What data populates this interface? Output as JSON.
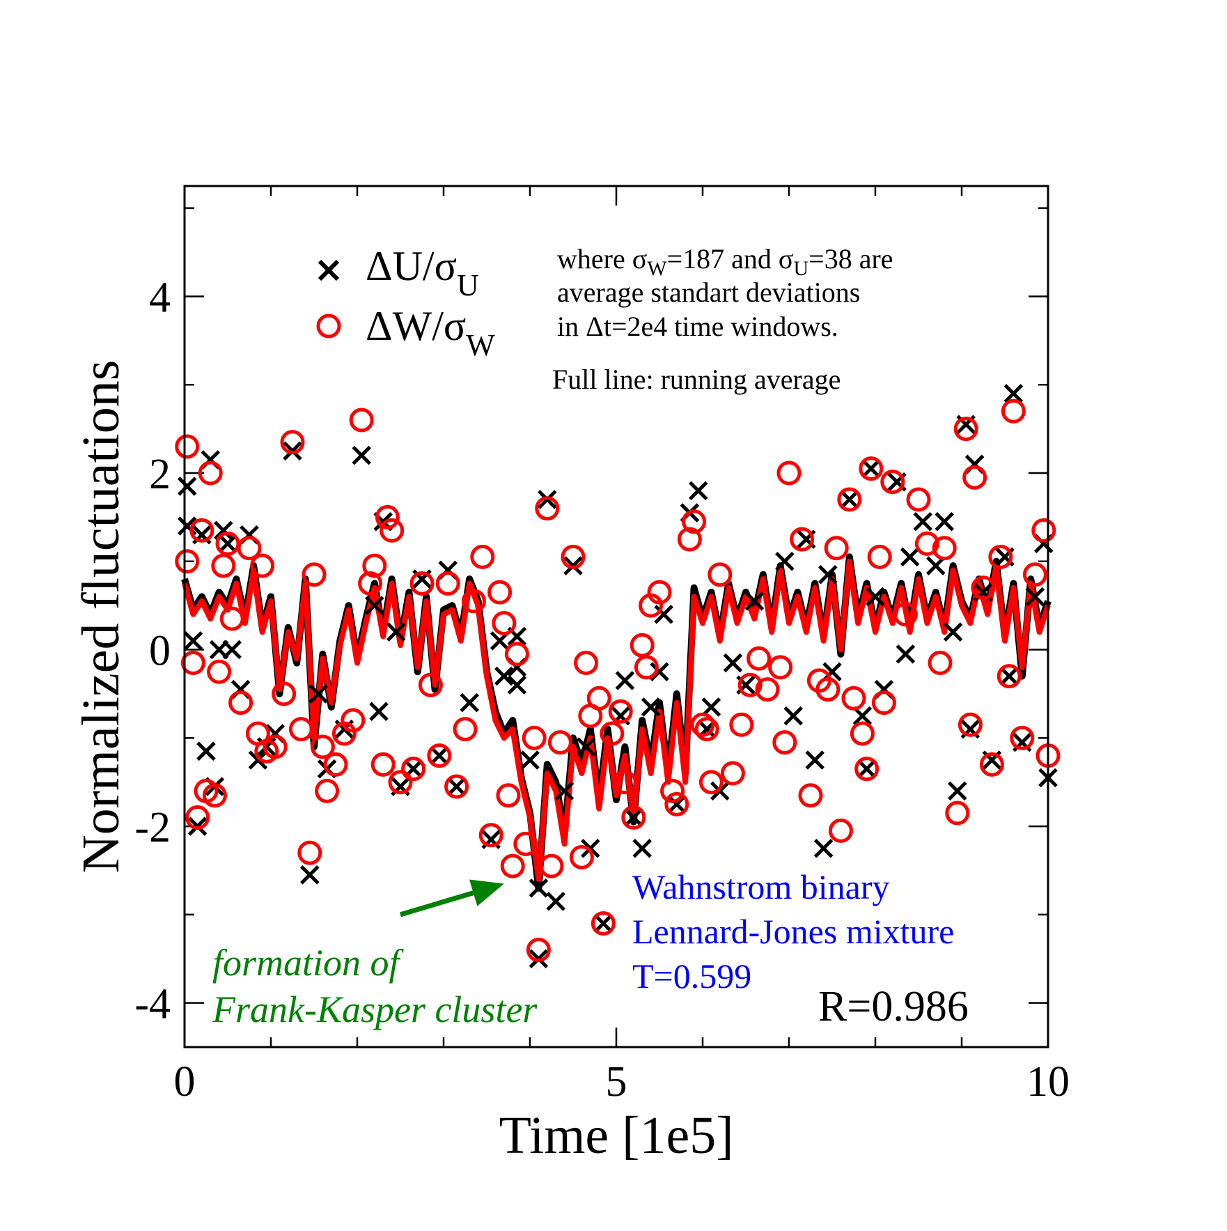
{
  "chart_data": {
    "type": "scatter",
    "xlabel": "Time [1e5]",
    "ylabel": "Normalized fluctuations",
    "xlim": [
      0,
      10
    ],
    "ylim": [
      -4.5,
      5.25
    ],
    "x_ticks": [
      "0",
      "5",
      "10"
    ],
    "y_ticks": [
      "-4",
      "-2",
      "0",
      "2",
      "4"
    ],
    "legend_placement": "top-left",
    "legend": [
      {
        "label": "ΔU/σ",
        "sub": "U",
        "marker": "x",
        "color": "#000000"
      },
      {
        "label": "ΔW/σ",
        "sub": "W",
        "marker": "circle",
        "color": "#ff0000"
      }
    ],
    "notes": {
      "line1_pre": "where σ",
      "line1_sub1": "W",
      "line1_mid": "=187 and σ",
      "line1_sub2": "U",
      "line1_post": "=38 are",
      "line2": "average standart deviations",
      "line3": "in Δt=2e4 time windows.",
      "line4": "Full line: running average"
    },
    "system_label": [
      "Wahnstrom binary",
      "Lennard-Jones mixture",
      "T=0.599"
    ],
    "system_color": "#0000ff",
    "correlation": "R=0.986",
    "annotation": {
      "lines": [
        "formation of",
        "Frank-Kasper cluster"
      ],
      "color": "#008000",
      "arrow_from": [
        2.5,
        -3.0
      ],
      "arrow_to": [
        3.7,
        -2.65
      ]
    },
    "series_colors": {
      "U": "#000000",
      "W": "#ff0000"
    },
    "series": [
      {
        "name": "ΔU/σU",
        "marker": "x",
        "points": [
          [
            0.03,
            1.85
          ],
          [
            0.03,
            1.4
          ],
          [
            0.1,
            0.1
          ],
          [
            0.15,
            -2.0
          ],
          [
            0.2,
            1.3
          ],
          [
            0.25,
            -1.15
          ],
          [
            0.3,
            2.15
          ],
          [
            0.35,
            -1.55
          ],
          [
            0.4,
            0.0
          ],
          [
            0.45,
            1.35
          ],
          [
            0.5,
            1.2
          ],
          [
            0.55,
            0.0
          ],
          [
            0.65,
            -0.45
          ],
          [
            0.75,
            1.3
          ],
          [
            0.85,
            -1.25
          ],
          [
            0.95,
            -1.1
          ],
          [
            1.05,
            -0.95
          ],
          [
            1.25,
            2.25
          ],
          [
            1.45,
            -2.55
          ],
          [
            1.55,
            -0.5
          ],
          [
            1.65,
            -1.35
          ],
          [
            1.85,
            -0.9
          ],
          [
            2.05,
            2.2
          ],
          [
            2.2,
            0.5
          ],
          [
            2.25,
            -0.7
          ],
          [
            2.3,
            1.45
          ],
          [
            2.45,
            0.2
          ],
          [
            2.5,
            -1.55
          ],
          [
            2.65,
            -1.35
          ],
          [
            2.75,
            0.8
          ],
          [
            2.95,
            -1.2
          ],
          [
            3.05,
            0.9
          ],
          [
            3.15,
            -1.55
          ],
          [
            3.3,
            -0.6
          ],
          [
            3.55,
            -2.15
          ],
          [
            3.65,
            0.1
          ],
          [
            3.7,
            -0.3
          ],
          [
            3.85,
            0.15
          ],
          [
            3.85,
            -0.4
          ],
          [
            3.85,
            -0.2
          ],
          [
            4.0,
            -1.25
          ],
          [
            4.1,
            -2.7
          ],
          [
            4.1,
            -3.5
          ],
          [
            4.2,
            1.7
          ],
          [
            4.3,
            -2.85
          ],
          [
            4.4,
            -1.6
          ],
          [
            4.5,
            0.95
          ],
          [
            4.65,
            -1.1
          ],
          [
            4.7,
            -2.25
          ],
          [
            4.85,
            -3.1
          ],
          [
            5.05,
            -0.75
          ],
          [
            5.1,
            -0.35
          ],
          [
            5.2,
            -1.9
          ],
          [
            5.3,
            -2.25
          ],
          [
            5.4,
            -0.65
          ],
          [
            5.5,
            -0.25
          ],
          [
            5.55,
            0.4
          ],
          [
            5.7,
            -1.75
          ],
          [
            5.85,
            1.55
          ],
          [
            5.95,
            1.8
          ],
          [
            6.05,
            -0.9
          ],
          [
            6.1,
            -0.65
          ],
          [
            6.2,
            -1.6
          ],
          [
            6.35,
            -0.15
          ],
          [
            6.5,
            -0.4
          ],
          [
            6.6,
            0.55
          ],
          [
            6.95,
            1.0
          ],
          [
            7.05,
            -0.75
          ],
          [
            7.2,
            1.25
          ],
          [
            7.3,
            -1.25
          ],
          [
            7.4,
            -2.25
          ],
          [
            7.45,
            0.85
          ],
          [
            7.5,
            -0.25
          ],
          [
            7.7,
            1.7
          ],
          [
            7.85,
            -0.75
          ],
          [
            7.9,
            -1.35
          ],
          [
            7.95,
            2.05
          ],
          [
            8.0,
            0.6
          ],
          [
            8.1,
            -0.45
          ],
          [
            8.25,
            1.9
          ],
          [
            8.35,
            -0.05
          ],
          [
            8.4,
            1.05
          ],
          [
            8.55,
            1.45
          ],
          [
            8.7,
            0.95
          ],
          [
            8.8,
            1.45
          ],
          [
            8.9,
            0.2
          ],
          [
            8.95,
            -1.6
          ],
          [
            9.05,
            2.55
          ],
          [
            9.1,
            -0.9
          ],
          [
            9.15,
            2.1
          ],
          [
            9.25,
            0.65
          ],
          [
            9.35,
            -1.25
          ],
          [
            9.5,
            1.05
          ],
          [
            9.55,
            -0.3
          ],
          [
            9.6,
            2.9
          ],
          [
            9.7,
            -1.05
          ],
          [
            9.85,
            0.6
          ],
          [
            9.95,
            1.2
          ],
          [
            10.0,
            -1.45
          ]
        ]
      },
      {
        "name": "ΔW/σW",
        "marker": "circle",
        "points": [
          [
            0.03,
            2.3
          ],
          [
            0.03,
            1.0
          ],
          [
            0.1,
            -0.15
          ],
          [
            0.15,
            -1.9
          ],
          [
            0.2,
            1.35
          ],
          [
            0.25,
            -1.6
          ],
          [
            0.3,
            2.0
          ],
          [
            0.35,
            -1.65
          ],
          [
            0.4,
            -0.25
          ],
          [
            0.45,
            0.95
          ],
          [
            0.5,
            1.2
          ],
          [
            0.55,
            0.35
          ],
          [
            0.65,
            -0.6
          ],
          [
            0.75,
            1.15
          ],
          [
            0.85,
            -0.95
          ],
          [
            0.9,
            0.95
          ],
          [
            0.95,
            -1.15
          ],
          [
            1.05,
            -1.1
          ],
          [
            1.15,
            -0.5
          ],
          [
            1.25,
            2.35
          ],
          [
            1.35,
            -0.9
          ],
          [
            1.45,
            -2.3
          ],
          [
            1.5,
            0.85
          ],
          [
            1.6,
            -1.1
          ],
          [
            1.65,
            -1.6
          ],
          [
            1.75,
            -1.3
          ],
          [
            1.85,
            -0.95
          ],
          [
            1.95,
            -0.8
          ],
          [
            2.05,
            2.6
          ],
          [
            2.15,
            0.75
          ],
          [
            2.2,
            0.95
          ],
          [
            2.3,
            -1.3
          ],
          [
            2.35,
            1.5
          ],
          [
            2.4,
            1.35
          ],
          [
            2.5,
            -1.5
          ],
          [
            2.65,
            -1.35
          ],
          [
            2.75,
            0.75
          ],
          [
            2.85,
            -0.4
          ],
          [
            2.95,
            -1.2
          ],
          [
            3.05,
            0.75
          ],
          [
            3.15,
            -1.55
          ],
          [
            3.25,
            -0.9
          ],
          [
            3.35,
            0.55
          ],
          [
            3.45,
            1.05
          ],
          [
            3.55,
            -2.1
          ],
          [
            3.65,
            0.65
          ],
          [
            3.7,
            0.3
          ],
          [
            3.75,
            -1.65
          ],
          [
            3.8,
            -2.45
          ],
          [
            3.85,
            -0.05
          ],
          [
            3.95,
            -2.2
          ],
          [
            4.05,
            -1.0
          ],
          [
            4.1,
            -3.4
          ],
          [
            4.2,
            1.6
          ],
          [
            4.25,
            -2.45
          ],
          [
            4.35,
            -1.05
          ],
          [
            4.5,
            1.05
          ],
          [
            4.6,
            -2.35
          ],
          [
            4.65,
            -0.15
          ],
          [
            4.7,
            -0.75
          ],
          [
            4.8,
            -0.55
          ],
          [
            4.85,
            -3.1
          ],
          [
            4.95,
            -0.95
          ],
          [
            5.05,
            -0.7
          ],
          [
            5.1,
            -1.5
          ],
          [
            5.2,
            -1.9
          ],
          [
            5.3,
            0.05
          ],
          [
            5.35,
            -0.2
          ],
          [
            5.4,
            0.5
          ],
          [
            5.5,
            0.65
          ],
          [
            5.65,
            -1.6
          ],
          [
            5.7,
            -1.75
          ],
          [
            5.85,
            1.25
          ],
          [
            5.9,
            1.45
          ],
          [
            6.0,
            -0.85
          ],
          [
            6.05,
            -0.9
          ],
          [
            6.1,
            -1.5
          ],
          [
            6.2,
            0.85
          ],
          [
            6.35,
            -1.4
          ],
          [
            6.45,
            -0.85
          ],
          [
            6.55,
            -0.4
          ],
          [
            6.65,
            -0.1
          ],
          [
            6.75,
            -0.45
          ],
          [
            6.9,
            -0.2
          ],
          [
            6.95,
            -1.05
          ],
          [
            7.0,
            2.0
          ],
          [
            7.15,
            1.25
          ],
          [
            7.25,
            -1.65
          ],
          [
            7.35,
            -0.35
          ],
          [
            7.45,
            -0.45
          ],
          [
            7.55,
            1.15
          ],
          [
            7.6,
            -2.05
          ],
          [
            7.7,
            1.7
          ],
          [
            7.75,
            -0.55
          ],
          [
            7.85,
            -0.95
          ],
          [
            7.9,
            -1.35
          ],
          [
            7.95,
            2.05
          ],
          [
            8.05,
            1.05
          ],
          [
            8.1,
            -0.6
          ],
          [
            8.2,
            1.9
          ],
          [
            8.35,
            0.4
          ],
          [
            8.5,
            1.7
          ],
          [
            8.6,
            1.2
          ],
          [
            8.75,
            -0.15
          ],
          [
            8.8,
            1.15
          ],
          [
            8.95,
            -1.85
          ],
          [
            9.05,
            2.5
          ],
          [
            9.1,
            -0.85
          ],
          [
            9.15,
            1.95
          ],
          [
            9.25,
            0.7
          ],
          [
            9.35,
            -1.3
          ],
          [
            9.45,
            1.05
          ],
          [
            9.55,
            -0.3
          ],
          [
            9.6,
            2.7
          ],
          [
            9.7,
            -1.0
          ],
          [
            9.85,
            0.85
          ],
          [
            9.95,
            1.35
          ],
          [
            10.0,
            -1.2
          ]
        ]
      }
    ],
    "running_average": {
      "name": "running average",
      "x": [
        0.0,
        0.1,
        0.2,
        0.3,
        0.4,
        0.5,
        0.6,
        0.7,
        0.8,
        0.9,
        1.0,
        1.1,
        1.2,
        1.3,
        1.4,
        1.5,
        1.6,
        1.7,
        1.8,
        1.9,
        2.0,
        2.1,
        2.2,
        2.3,
        2.4,
        2.5,
        2.6,
        2.7,
        2.8,
        2.9,
        3.0,
        3.1,
        3.2,
        3.3,
        3.4,
        3.5,
        3.6,
        3.7,
        3.8,
        3.9,
        4.0,
        4.1,
        4.2,
        4.3,
        4.4,
        4.5,
        4.6,
        4.7,
        4.8,
        4.9,
        5.0,
        5.1,
        5.2,
        5.3,
        5.4,
        5.5,
        5.6,
        5.7,
        5.8,
        5.9,
        6.0,
        6.1,
        6.2,
        6.3,
        6.4,
        6.5,
        6.6,
        6.7,
        6.8,
        6.9,
        7.0,
        7.1,
        7.2,
        7.3,
        7.4,
        7.5,
        7.6,
        7.7,
        7.8,
        7.9,
        8.0,
        8.1,
        8.2,
        8.3,
        8.4,
        8.5,
        8.6,
        8.7,
        8.8,
        8.9,
        9.0,
        9.1,
        9.2,
        9.3,
        9.4,
        9.5,
        9.6,
        9.7,
        9.8,
        9.9,
        10.0
      ],
      "W": [
        0.75,
        0.4,
        0.55,
        0.35,
        0.6,
        0.45,
        0.75,
        0.3,
        0.9,
        0.2,
        0.55,
        -0.45,
        0.2,
        -0.1,
        0.75,
        -1.0,
        -0.1,
        -0.6,
        0.05,
        0.45,
        -0.15,
        0.3,
        0.7,
        0.15,
        0.75,
        0.05,
        0.6,
        -0.2,
        0.55,
        -0.4,
        0.4,
        0.45,
        0.1,
        0.75,
        0.5,
        -0.3,
        -0.8,
        -1.0,
        -0.9,
        -1.5,
        -1.9,
        -2.6,
        -1.4,
        -1.6,
        -2.2,
        -1.1,
        -1.4,
        -1.0,
        -1.8,
        -1.0,
        -1.65,
        -1.2,
        -1.9,
        -0.9,
        -1.4,
        -0.7,
        -1.5,
        -0.6,
        -1.5,
        0.6,
        0.3,
        0.6,
        0.1,
        0.7,
        0.3,
        0.6,
        0.35,
        0.8,
        0.2,
        0.9,
        0.3,
        0.6,
        0.2,
        0.7,
        0.1,
        0.8,
        0.0,
        1.0,
        0.3,
        0.7,
        0.2,
        0.6,
        0.3,
        0.7,
        0.2,
        0.8,
        0.3,
        0.6,
        0.2,
        0.9,
        0.5,
        0.3,
        0.75,
        0.4,
        0.95,
        0.1,
        0.7,
        -0.2,
        0.75,
        0.2,
        0.5
      ],
      "U": [
        0.8,
        0.45,
        0.6,
        0.4,
        0.65,
        0.5,
        0.8,
        0.35,
        0.95,
        0.25,
        0.6,
        -0.5,
        0.25,
        -0.15,
        0.8,
        -1.1,
        -0.05,
        -0.65,
        0.1,
        0.5,
        -0.1,
        0.35,
        0.75,
        0.2,
        0.8,
        0.1,
        0.65,
        -0.25,
        0.6,
        -0.45,
        0.45,
        0.5,
        0.15,
        0.8,
        0.55,
        -0.25,
        -0.7,
        -0.95,
        -0.8,
        -1.45,
        -1.85,
        -2.7,
        -1.3,
        -1.5,
        -2.1,
        -1.0,
        -1.3,
        -0.9,
        -1.7,
        -0.9,
        -1.7,
        -1.1,
        -1.95,
        -0.8,
        -1.3,
        -0.6,
        -1.4,
        -0.5,
        -1.4,
        0.7,
        0.35,
        0.65,
        0.15,
        0.75,
        0.35,
        0.65,
        0.4,
        0.85,
        0.25,
        0.95,
        0.35,
        0.65,
        0.25,
        0.75,
        0.15,
        0.85,
        -0.05,
        1.05,
        0.35,
        0.75,
        0.25,
        0.65,
        0.35,
        0.75,
        0.25,
        0.85,
        0.35,
        0.65,
        0.25,
        0.95,
        0.55,
        0.35,
        0.8,
        0.45,
        1.0,
        0.15,
        0.75,
        -0.3,
        0.8,
        0.25,
        0.55
      ]
    }
  }
}
